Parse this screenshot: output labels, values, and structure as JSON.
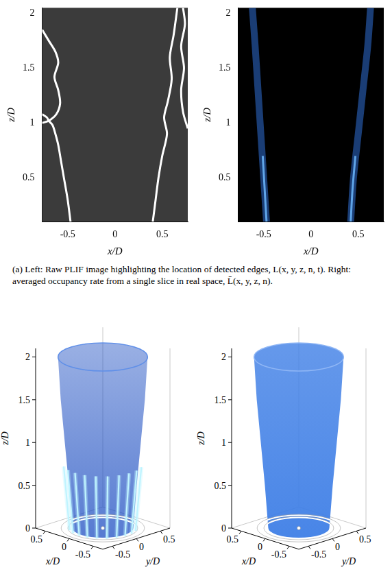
{
  "chart_data": [
    {
      "type": "line",
      "xlabel": "x/D",
      "ylabel": "z/D",
      "xlim": [
        -0.77,
        0.77
      ],
      "ylim": [
        0.1,
        2.05
      ],
      "xticks": [
        -0.5,
        0,
        0.5
      ],
      "yticks": [
        0.5,
        1,
        1.5,
        2
      ],
      "grid": false,
      "series": [
        {
          "color": "#ffffff",
          "line_style": "solid",
          "x": [
            -0.47,
            -0.5,
            -0.54,
            -0.57,
            -0.6,
            -0.63,
            -0.66,
            -0.7,
            -0.72,
            -0.77
          ],
          "values": [
            0.1,
            0.3,
            0.5,
            0.65,
            0.8,
            0.9,
            0.98,
            1.02,
            1.05,
            1.08
          ]
        },
        {
          "color": "#ffffff",
          "line_style": "solid",
          "x": [
            -0.77,
            -0.7,
            -0.62,
            -0.58,
            -0.6,
            -0.64,
            -0.6,
            -0.63,
            -0.7,
            -0.77
          ],
          "values": [
            1.0,
            1.02,
            1.08,
            1.18,
            1.3,
            1.42,
            1.55,
            1.65,
            1.75,
            1.85
          ]
        },
        {
          "color": "#ffffff",
          "line_style": "solid",
          "x": [
            0.4,
            0.43,
            0.46,
            0.5,
            0.55,
            0.52,
            0.56,
            0.6,
            0.58,
            0.62,
            0.66
          ],
          "values": [
            0.1,
            0.3,
            0.5,
            0.7,
            0.9,
            1.05,
            1.2,
            1.4,
            1.6,
            1.8,
            2.05
          ]
        },
        {
          "color": "#ffffff",
          "line_style": "solid",
          "x": [
            0.77,
            0.72,
            0.7,
            0.73,
            0.7,
            0.74,
            0.72
          ],
          "values": [
            0.95,
            1.1,
            1.3,
            1.5,
            1.7,
            1.9,
            2.05
          ]
        }
      ]
    },
    {
      "type": "line",
      "xlabel": "x/D",
      "ylabel": "z/D",
      "xlim": [
        -0.77,
        0.77
      ],
      "ylim": [
        0.1,
        2.05
      ],
      "xticks": [
        -0.5,
        0,
        0.5
      ],
      "yticks": [
        0.5,
        1,
        1.5,
        2
      ],
      "grid": false,
      "series": [
        {
          "color": "#2f6fd6",
          "line_style": "glow",
          "x": [
            -0.47,
            -0.5,
            -0.53,
            -0.56,
            -0.59,
            -0.62
          ],
          "values": [
            0.1,
            0.5,
            0.9,
            1.3,
            1.7,
            2.05
          ]
        },
        {
          "color": "#2f6fd6",
          "line_style": "glow",
          "x": [
            0.42,
            0.45,
            0.5,
            0.55,
            0.6,
            0.63
          ],
          "values": [
            0.1,
            0.5,
            0.9,
            1.3,
            1.7,
            2.05
          ]
        },
        {
          "color": "#9be7ff",
          "line_style": "solid",
          "x": [
            -0.47,
            -0.49,
            -0.51
          ],
          "values": [
            0.1,
            0.4,
            0.7
          ]
        },
        {
          "color": "#9be7ff",
          "line_style": "solid",
          "x": [
            0.42,
            0.44,
            0.47
          ],
          "values": [
            0.1,
            0.4,
            0.7
          ]
        }
      ]
    }
  ],
  "caption": "(a) Left: Raw PLIF image highlighting the location of detected edges, L(x, y, z, n, t). Right: averaged occupancy rate from a single slice in real space, L̄(x, y, z, n).",
  "volumes": [
    {
      "type": "surface",
      "xlabel": "x/D",
      "ylabel": "y/D",
      "zlabel": "z/D",
      "xlim": [
        -0.7,
        0.7
      ],
      "ylim": [
        -0.7,
        0.7
      ],
      "zlim": [
        0,
        2.1
      ],
      "xticks": [
        -0.5,
        0,
        0.5
      ],
      "yticks": [
        -0.5,
        0,
        0.5
      ],
      "zticks": [
        0,
        0.5,
        1,
        1.5,
        2
      ],
      "rings": [
        0.5,
        0.6
      ],
      "color": "#1e4fc2",
      "profile": {
        "z": [
          0,
          0.5,
          1,
          1.5,
          2
        ],
        "r": [
          0.45,
          0.5,
          0.56,
          0.62,
          0.66
        ]
      },
      "streaks": {
        "color": "#bff4ff",
        "z": [
          0,
          0.75
        ],
        "x": [
          -0.433,
          -0.487,
          -0.499,
          -0.467,
          -0.394,
          -0.287,
          -0.155,
          -0.009,
          0.138,
          0.272
        ],
        "y": [
          0.25,
          0.112,
          -0.035,
          -0.179,
          -0.308,
          -0.41,
          -0.476,
          -0.5,
          -0.481,
          -0.419
        ]
      }
    },
    {
      "type": "surface",
      "xlabel": "x/D",
      "ylabel": "y/D",
      "zlabel": "z/D",
      "xlim": [
        -0.7,
        0.7
      ],
      "ylim": [
        -0.7,
        0.7
      ],
      "zlim": [
        0,
        2.1
      ],
      "xticks": [
        -0.5,
        0,
        0.5
      ],
      "yticks": [
        -0.5,
        0,
        0.5
      ],
      "zticks": [
        0,
        0.5,
        1,
        1.5,
        2
      ],
      "rings": [
        0.5,
        0.6
      ],
      "color": "#3f7fe6",
      "profile": {
        "z": [
          0,
          0.5,
          1,
          1.5,
          2
        ],
        "r": [
          0.45,
          0.5,
          0.56,
          0.62,
          0.66
        ]
      }
    }
  ]
}
